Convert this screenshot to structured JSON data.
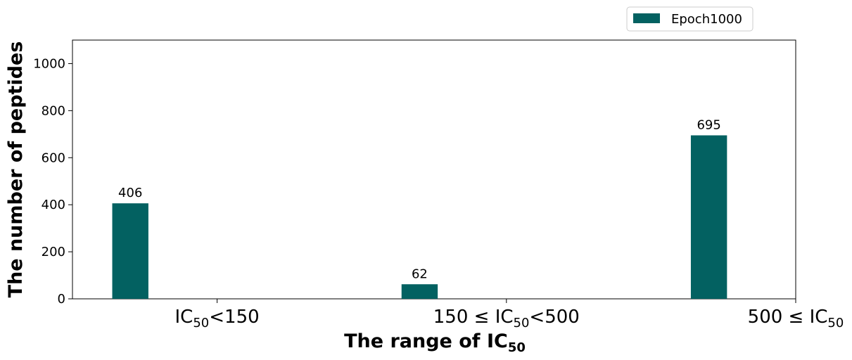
{
  "chart_data": {
    "type": "bar",
    "categories": [
      {
        "main": "IC",
        "sub": "50",
        "post": "<150"
      },
      {
        "main": "150 ≤ IC",
        "sub": "50",
        "post": "<500"
      },
      {
        "main": "500 ≤ IC",
        "sub": "50",
        "post": ""
      }
    ],
    "series": [
      {
        "name": "Epoch1000",
        "values": [
          406,
          62,
          695
        ],
        "color": "#036161"
      }
    ],
    "xlabel": {
      "main": "The range of IC",
      "sub": "50"
    },
    "ylabel": "The number of peptides",
    "ylim": [
      0,
      1100
    ],
    "yticks": [
      "0",
      "200",
      "400",
      "600",
      "800",
      "1000"
    ],
    "legend_position": "top-right, above plot",
    "grid": false
  }
}
